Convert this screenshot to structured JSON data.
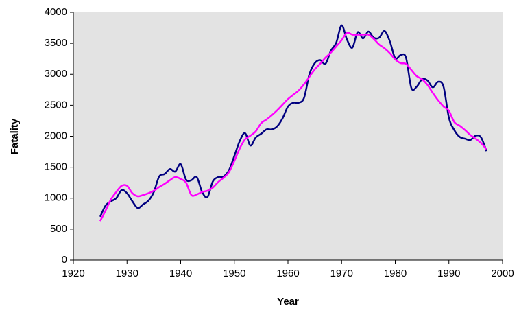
{
  "chart_data": {
    "type": "line",
    "x_label": "Year",
    "y_label": "Fatality",
    "x": [
      1925,
      1926,
      1927,
      1928,
      1929,
      1930,
      1931,
      1932,
      1933,
      1934,
      1935,
      1936,
      1937,
      1938,
      1939,
      1940,
      1941,
      1942,
      1943,
      1944,
      1945,
      1946,
      1947,
      1948,
      1949,
      1950,
      1951,
      1952,
      1953,
      1954,
      1955,
      1956,
      1957,
      1958,
      1959,
      1960,
      1961,
      1962,
      1963,
      1964,
      1965,
      1966,
      1967,
      1968,
      1969,
      1970,
      1971,
      1972,
      1973,
      1974,
      1975,
      1976,
      1977,
      1978,
      1979,
      1980,
      1981,
      1982,
      1983,
      1984,
      1985,
      1986,
      1987,
      1988,
      1989,
      1990,
      1991,
      1992,
      1993,
      1994,
      1995,
      1996,
      1997
    ],
    "series": [
      {
        "color": "#000080",
        "values": [
          700,
          880,
          950,
          1000,
          1130,
          1080,
          950,
          840,
          900,
          960,
          1100,
          1350,
          1390,
          1470,
          1430,
          1550,
          1300,
          1290,
          1340,
          1100,
          1020,
          1270,
          1340,
          1350,
          1450,
          1680,
          1920,
          2050,
          1850,
          1980,
          2040,
          2110,
          2110,
          2160,
          2290,
          2480,
          2540,
          2540,
          2620,
          3000,
          3180,
          3230,
          3170,
          3380,
          3510,
          3790,
          3560,
          3430,
          3680,
          3580,
          3690,
          3590,
          3590,
          3700,
          3530,
          3260,
          3310,
          3270,
          2780,
          2800,
          2920,
          2900,
          2790,
          2880,
          2800,
          2300,
          2100,
          1990,
          1960,
          1940,
          2010,
          1980,
          1760
        ]
      },
      {
        "color": "#ff00ff",
        "values": [
          630,
          800,
          980,
          1100,
          1200,
          1200,
          1080,
          1030,
          1050,
          1080,
          1120,
          1180,
          1230,
          1290,
          1340,
          1310,
          1250,
          1050,
          1060,
          1100,
          1120,
          1170,
          1260,
          1330,
          1420,
          1600,
          1800,
          1950,
          2010,
          2080,
          2210,
          2270,
          2340,
          2420,
          2510,
          2600,
          2670,
          2740,
          2840,
          2960,
          3080,
          3170,
          3270,
          3350,
          3450,
          3550,
          3670,
          3640,
          3640,
          3640,
          3640,
          3570,
          3480,
          3420,
          3340,
          3240,
          3180,
          3170,
          3070,
          2970,
          2920,
          2830,
          2700,
          2580,
          2480,
          2410,
          2230,
          2170,
          2100,
          2020,
          1960,
          1890,
          1790
        ]
      }
    ],
    "xlim": [
      1920,
      2000
    ],
    "xticks": [
      1920,
      1930,
      1940,
      1950,
      1960,
      1970,
      1980,
      1990,
      2000
    ],
    "ylim": [
      0,
      4000
    ],
    "yticks": [
      0,
      500,
      1000,
      1500,
      2000,
      2500,
      3000,
      3500,
      4000
    ],
    "plot_background": "#e3e3e3"
  }
}
